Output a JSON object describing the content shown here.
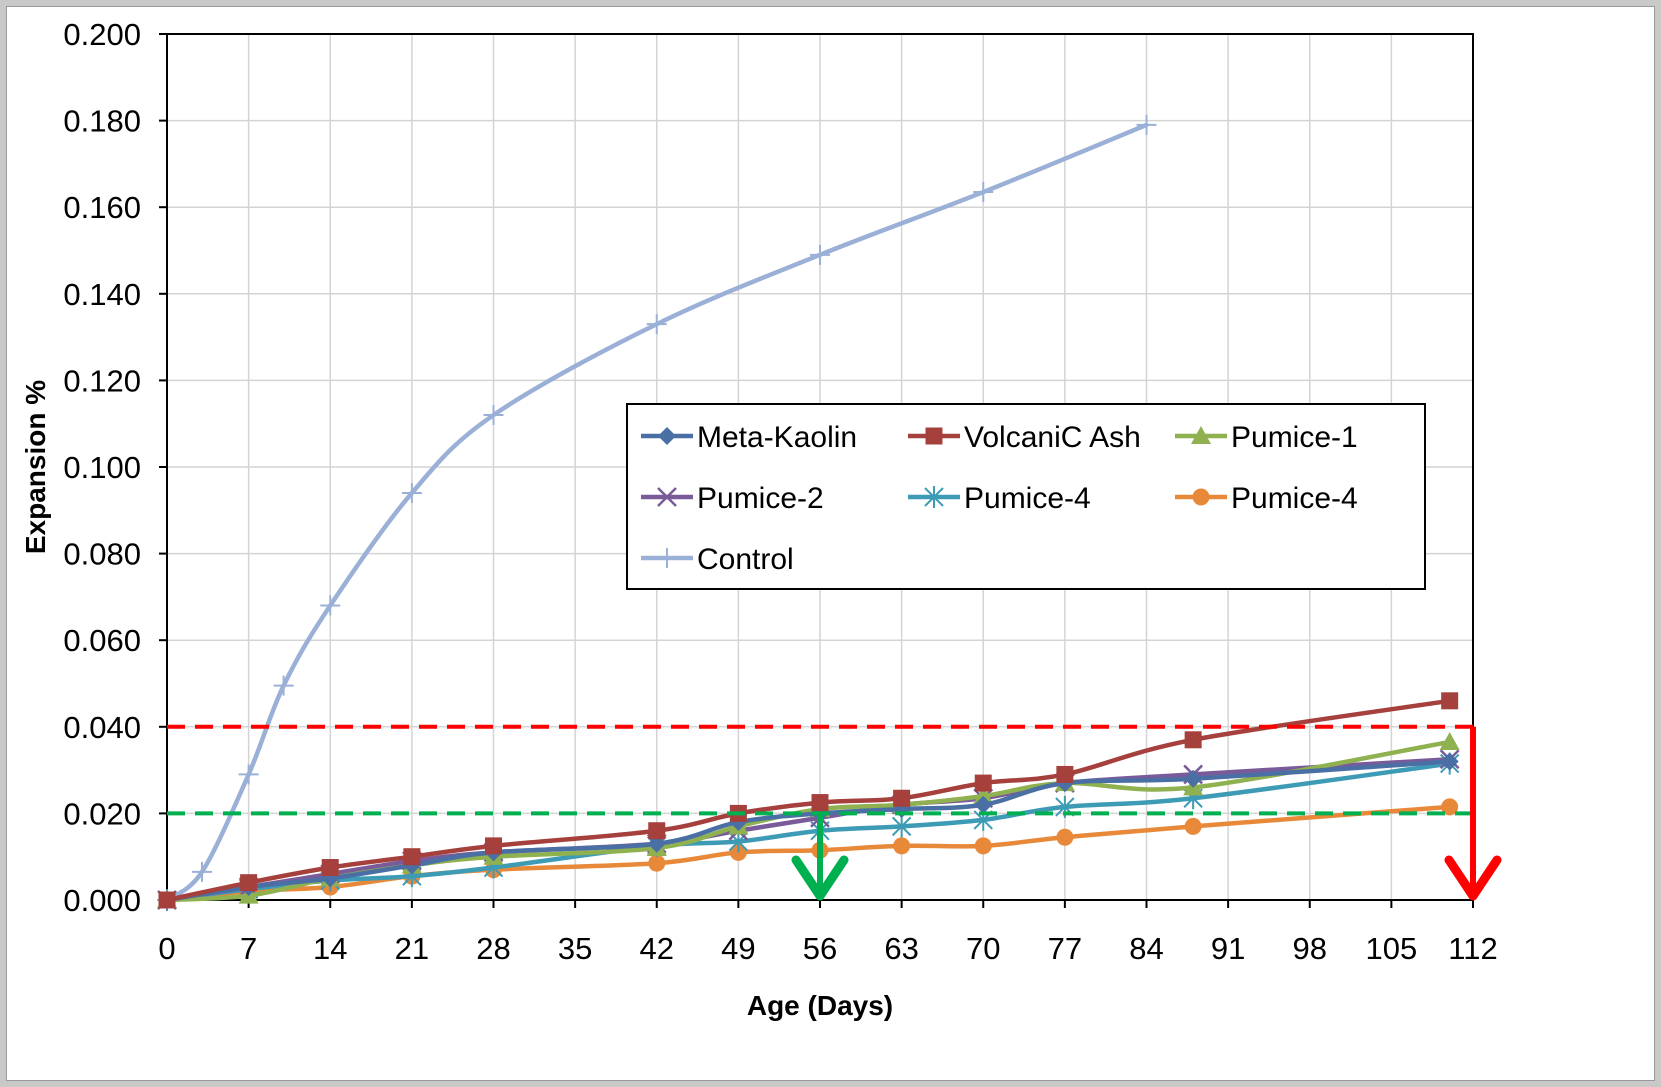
{
  "chart_data": {
    "type": "line",
    "xlabel": "Age (Days)",
    "ylabel": "Expansion %",
    "xlim": [
      0,
      112
    ],
    "ylim": [
      0,
      0.2
    ],
    "x_ticks": [
      "0",
      "7",
      "14",
      "21",
      "28",
      "35",
      "42",
      "49",
      "56",
      "63",
      "70",
      "77",
      "84",
      "91",
      "98",
      "105",
      "112"
    ],
    "y_ticks": [
      "0.000",
      "0.020",
      "0.040",
      "0.060",
      "0.080",
      "0.100",
      "0.120",
      "0.140",
      "0.160",
      "0.180",
      "0.200"
    ],
    "grid": true,
    "legend_position": "center-right",
    "series": [
      {
        "name": "Meta-Kaolin",
        "color": "#4a6fa5",
        "marker": "diamond",
        "x": [
          0,
          7,
          14,
          21,
          28,
          42,
          49,
          56,
          63,
          70,
          77,
          88,
          110
        ],
        "y": [
          0,
          0.003,
          0.005,
          0.008,
          0.011,
          0.013,
          0.018,
          0.02,
          0.021,
          0.022,
          0.027,
          0.028,
          0.032
        ]
      },
      {
        "name": "VolcaniC Ash",
        "color": "#a5403d",
        "marker": "square",
        "x": [
          0,
          7,
          14,
          21,
          28,
          42,
          49,
          56,
          63,
          70,
          77,
          88,
          110
        ],
        "y": [
          0,
          0.004,
          0.0075,
          0.01,
          0.0125,
          0.016,
          0.02,
          0.0225,
          0.0235,
          0.027,
          0.029,
          0.037,
          0.046
        ]
      },
      {
        "name": "Pumice-1",
        "color": "#8fb14f",
        "marker": "triangle",
        "x": [
          0,
          7,
          14,
          21,
          28,
          42,
          49,
          56,
          63,
          70,
          77,
          88,
          110
        ],
        "y": [
          0,
          0.001,
          0.005,
          0.008,
          0.01,
          0.012,
          0.017,
          0.021,
          0.022,
          0.024,
          0.027,
          0.026,
          0.0365
        ]
      },
      {
        "name": "Pumice-2",
        "color": "#7a5b9a",
        "marker": "x",
        "x": [
          0,
          7,
          14,
          21,
          28,
          42,
          49,
          56,
          63,
          70,
          77,
          88,
          110
        ],
        "y": [
          0,
          0.003,
          0.006,
          0.009,
          0.011,
          0.013,
          0.016,
          0.019,
          0.022,
          0.0235,
          0.027,
          0.029,
          0.0325
        ]
      },
      {
        "name": "Pumice-4",
        "color": "#3d9bb5",
        "marker": "star",
        "x": [
          0,
          7,
          14,
          21,
          28,
          42,
          49,
          56,
          63,
          70,
          77,
          88,
          110
        ],
        "y": [
          0,
          0.0025,
          0.0045,
          0.0055,
          0.0075,
          0.0125,
          0.0135,
          0.016,
          0.017,
          0.0185,
          0.0215,
          0.0235,
          0.0315
        ]
      },
      {
        "name": "Pumice-4",
        "color": "#e8893a",
        "marker": "circle",
        "x": [
          0,
          7,
          14,
          21,
          28,
          42,
          49,
          56,
          63,
          70,
          77,
          88,
          110
        ],
        "y": [
          0,
          0.002,
          0.003,
          0.0055,
          0.007,
          0.0085,
          0.011,
          0.0115,
          0.0125,
          0.0125,
          0.0145,
          0.017,
          0.0215
        ]
      },
      {
        "name": "Control",
        "color": "#9bb0d6",
        "marker": "plus",
        "x": [
          0,
          3,
          7,
          10,
          14,
          21,
          28,
          42,
          56,
          70,
          84
        ],
        "y": [
          0,
          0.0065,
          0.029,
          0.0495,
          0.068,
          0.094,
          0.112,
          0.133,
          0.149,
          0.1635,
          0.179
        ]
      }
    ],
    "reference_lines": [
      {
        "y": 0.04,
        "color": "#ff0000",
        "style": "dashed"
      },
      {
        "y": 0.02,
        "color": "#00b050",
        "style": "dashed"
      }
    ],
    "arrows": [
      {
        "x": 56,
        "from_y": 0.02,
        "to_y": 0,
        "color": "#00b050"
      },
      {
        "x": 112,
        "from_y": 0.04,
        "to_y": 0,
        "color": "#ff0000"
      }
    ]
  }
}
